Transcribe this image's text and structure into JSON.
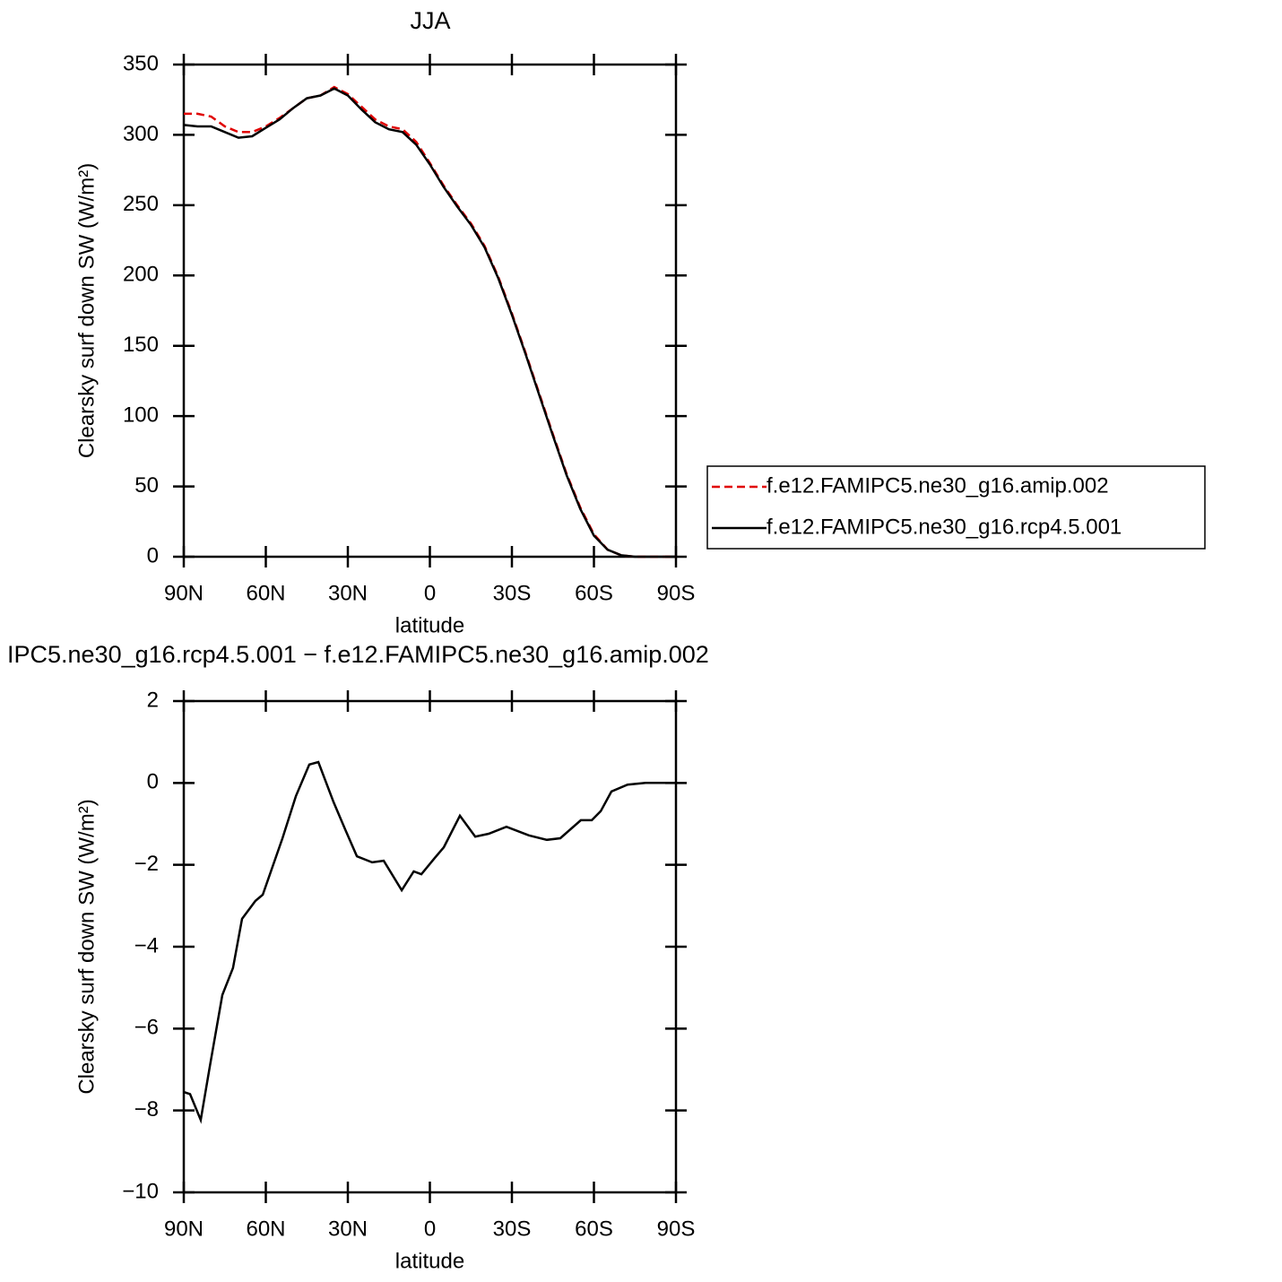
{
  "chart_data": [
    {
      "type": "line",
      "title": "JJA",
      "xlabel": "latitude",
      "ylabel": "Clearsky surf down SW (W/m²)",
      "x": [
        90,
        85,
        80,
        75,
        70,
        65,
        60,
        55,
        50,
        45,
        40,
        35,
        30,
        25,
        20,
        15,
        10,
        5,
        0,
        -5,
        -10,
        -15,
        -20,
        -25,
        -30,
        -35,
        -40,
        -45,
        -50,
        -55,
        -60,
        -65,
        -70,
        -75,
        -80,
        -85,
        -90
      ],
      "series": [
        {
          "name": "f.e12.FAMIPC5.ne30_g16.amip.002",
          "color": "#e00000",
          "line_style": "dashed",
          "values": [
            315,
            315,
            313,
            306,
            302,
            302,
            306,
            312,
            319,
            326,
            328,
            334,
            329,
            320,
            311,
            306,
            304,
            295,
            280,
            264,
            250,
            237,
            221,
            199,
            173,
            145,
            116,
            87,
            59,
            35,
            16,
            5,
            1,
            0,
            0,
            0,
            0
          ]
        },
        {
          "name": "f.e12.FAMIPC5.ne30_g16.rcp4.5.001",
          "color": "#000000",
          "line_style": "solid",
          "values": [
            307,
            306,
            306,
            302,
            298,
            299,
            305,
            311,
            319,
            326,
            328,
            333,
            328,
            318,
            309,
            304,
            302,
            293,
            279,
            263,
            249,
            236,
            220,
            198,
            172,
            144,
            115,
            86,
            58,
            34,
            15,
            5,
            1,
            0,
            0,
            0,
            0
          ]
        }
      ],
      "xlim": [
        90,
        -90
      ],
      "ylim": [
        0,
        350
      ],
      "xticks": [
        {
          "value": 90,
          "label": "90N"
        },
        {
          "value": 60,
          "label": "60N"
        },
        {
          "value": 30,
          "label": "30N"
        },
        0,
        {
          "value": -30,
          "label": "30S"
        },
        {
          "value": -60,
          "label": "60S"
        },
        {
          "value": -90,
          "label": "90S"
        }
      ],
      "yticks": [
        0,
        50,
        100,
        150,
        200,
        250,
        300,
        350
      ],
      "legend": "right"
    },
    {
      "type": "line",
      "title": "IPC5.ne30_g16.rcp4.5.001 − f.e12.FAMIPC5.ne30_g16.amip.002",
      "xlabel": "latitude",
      "ylabel": "Clearsky surf down SW (W/m²)",
      "x": [
        90,
        87.7,
        83.8,
        80.5,
        75.9,
        72,
        68.7,
        63.8,
        61.1,
        53.9,
        49,
        44.1,
        40.8,
        35.2,
        31,
        26.7,
        21.1,
        16.9,
        10.3,
        5.9,
        3.1,
        -1.8,
        -5.1,
        -11,
        -16.6,
        -21.5,
        -28,
        -36.2,
        -42.8,
        -47.7,
        -55.2,
        -59.2,
        -62.5,
        -66.4,
        -72.3,
        -78.9,
        -90
      ],
      "series": [
        {
          "color": "#000000",
          "line_style": "solid",
          "values": [
            -7.55,
            -7.6,
            -8.23,
            -6.93,
            -5.18,
            -4.52,
            -3.32,
            -2.88,
            -2.73,
            -1.35,
            -0.32,
            0.45,
            0.51,
            -0.47,
            -1.13,
            -1.79,
            -1.94,
            -1.9,
            -2.62,
            -2.16,
            -2.23,
            -1.83,
            -1.57,
            -0.8,
            -1.31,
            -1.24,
            -1.07,
            -1.28,
            -1.39,
            -1.35,
            -0.91,
            -0.91,
            -0.69,
            -0.21,
            -0.04,
            0,
            0
          ]
        }
      ],
      "xlim": [
        90,
        -90
      ],
      "ylim": [
        -10,
        2
      ],
      "xticks": [
        {
          "value": 90,
          "label": "90N"
        },
        {
          "value": 60,
          "label": "60N"
        },
        {
          "value": 30,
          "label": "30N"
        },
        0,
        {
          "value": -30,
          "label": "30S"
        },
        {
          "value": -60,
          "label": "60S"
        },
        {
          "value": -90,
          "label": "90S"
        }
      ],
      "yticks": [
        {
          "value": -10,
          "label": "−10"
        },
        {
          "value": -8,
          "label": "−8"
        },
        {
          "value": -6,
          "label": "−6"
        },
        {
          "value": -4,
          "label": "−4"
        },
        {
          "value": -2,
          "label": "−2"
        },
        0,
        2
      ]
    }
  ]
}
